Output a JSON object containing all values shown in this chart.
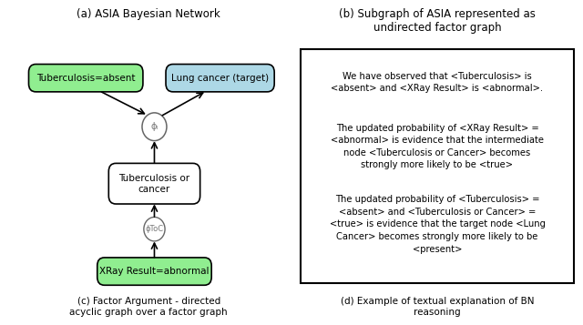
{
  "title_a": "(a) ASIA Bayesian Network",
  "title_b": "(b) Subgraph of ASIA represented as\nundirected factor graph",
  "title_c": "(c) Factor Argument - directed\nacyclic graph over a factor graph",
  "title_d": "(d) Example of textual explanation of BN\nreasoning",
  "node_tuberculosis": "Tuberculosis=absent",
  "node_lung": "Lung cancer (target)",
  "node_toc": "Tuberculosis or\ncancer",
  "node_xray": "XRay Result=abnormal",
  "factor_L": "ϕₗ",
  "factor_ToC": "ϕToC",
  "color_green": "#90EE90",
  "color_blue": "#ADD8E6",
  "color_white": "#FFFFFF",
  "text_para1": "We have observed that <Tuberculosis> is\n<absent> and <XRay Result> is <abnormal>.",
  "text_para2": "The updated probability of <XRay Result> =\n<abnormal> is evidence that the intermediate\nnode <Tuberculosis or Cancer> becomes\nstrongly more likely to be <true>",
  "text_para3": "The updated probability of <Tuberculosis> =\n<absent> and <Tuberculosis or Cancer> =\n<true> is evidence that the target node <Lung\nCancer> becomes strongly more likely to be\n<present>",
  "figsize": [
    6.4,
    3.57
  ],
  "dpi": 100
}
